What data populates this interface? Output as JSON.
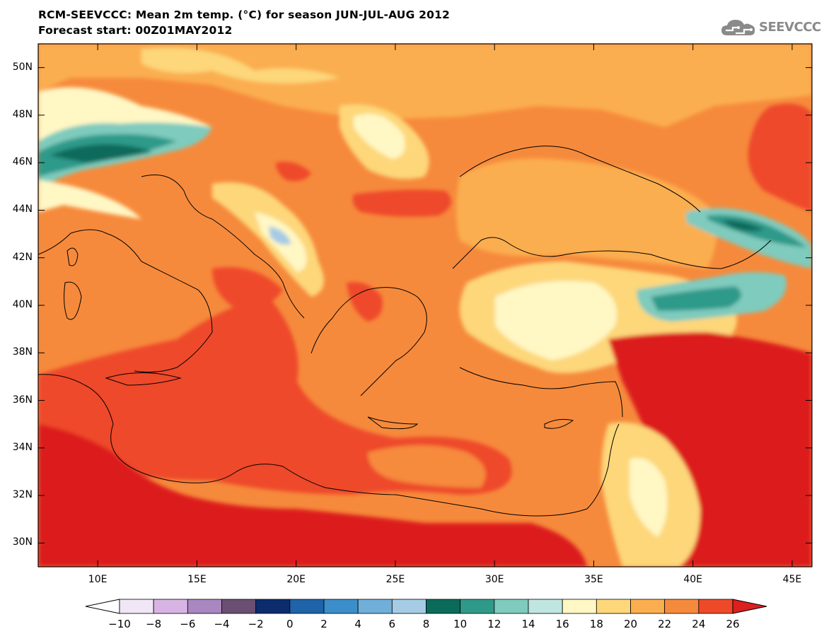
{
  "title_line1": "RCM-SEEVCCC: Mean 2m temp. (°C) for season JUN-JUL-AUG 2012",
  "title_line2": "Forecast start: 00Z01MAY2012",
  "logo_text": "SEEVCCC",
  "logo_icon": "cloud-icon",
  "map_extent": {
    "lon_min": 7,
    "lon_max": 46,
    "lat_min": 29,
    "lat_max": 51
  },
  "lat_ticks": [
    {
      "value": 30,
      "label": "30N"
    },
    {
      "value": 32,
      "label": "32N"
    },
    {
      "value": 34,
      "label": "34N"
    },
    {
      "value": 36,
      "label": "36N"
    },
    {
      "value": 38,
      "label": "38N"
    },
    {
      "value": 40,
      "label": "40N"
    },
    {
      "value": 42,
      "label": "42N"
    },
    {
      "value": 44,
      "label": "44N"
    },
    {
      "value": 46,
      "label": "46N"
    },
    {
      "value": 48,
      "label": "48N"
    },
    {
      "value": 50,
      "label": "50N"
    }
  ],
  "lon_ticks": [
    {
      "value": 10,
      "label": "10E"
    },
    {
      "value": 15,
      "label": "15E"
    },
    {
      "value": 20,
      "label": "20E"
    },
    {
      "value": 25,
      "label": "25E"
    },
    {
      "value": 30,
      "label": "30E"
    },
    {
      "value": 35,
      "label": "35E"
    },
    {
      "value": 40,
      "label": "40E"
    },
    {
      "value": 45,
      "label": "45E"
    }
  ],
  "colorbar": {
    "levels": [
      -10,
      -8,
      -6,
      -4,
      -2,
      0,
      2,
      4,
      6,
      8,
      10,
      12,
      14,
      16,
      18,
      20,
      22,
      24,
      26
    ],
    "labels": [
      "−10",
      "−8",
      "−6",
      "−4",
      "−2",
      "0",
      "2",
      "4",
      "6",
      "8",
      "10",
      "12",
      "14",
      "16",
      "18",
      "20",
      "22",
      "24",
      "26"
    ],
    "low_color": "#ffffff",
    "colors": [
      "#f0e6f5",
      "#d8b4e4",
      "#a987c0",
      "#6b4f73",
      "#0d2c6e",
      "#1f63a8",
      "#3b8ec9",
      "#6fafd9",
      "#a6cbe5",
      "#0b6b5b",
      "#2f9a8a",
      "#7fcbbd",
      "#bfe6e0",
      "#fff7c4",
      "#fdd77a",
      "#fbae4f",
      "#f68a3c",
      "#ee4a2a"
    ],
    "high_color": "#dc1f1f"
  }
}
